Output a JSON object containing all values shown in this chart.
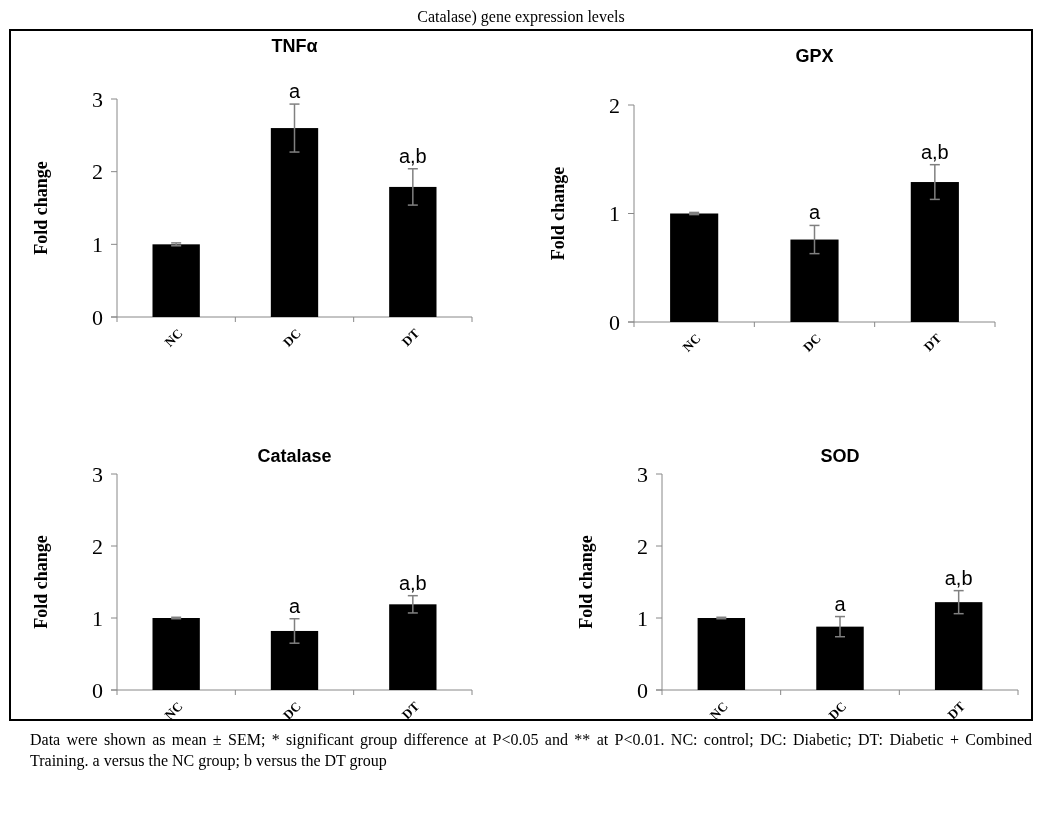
{
  "chart_data": [
    {
      "type": "bar",
      "title": "TNFα",
      "ylabel": "Fold change",
      "categories": [
        "NC",
        "DC",
        "DT"
      ],
      "values": [
        1.0,
        2.6,
        1.79
      ],
      "errors": [
        0.02,
        0.33,
        0.25
      ],
      "color": "#000000",
      "ylim": [
        0,
        3
      ],
      "yticks": [
        0,
        1,
        2,
        3
      ],
      "annotations": [
        "Catalase) gene expression levels",
        {
          "text": "a",
          "x": "DC",
          "y": 2.93
        },
        {
          "text": "a,b",
          "x": "DT",
          "y": 2.04
        },
        "Data were shown as mean ± SEM; * significant group difference at P<0.05  and ** at P<0.01. NC: control; DC: Diabetic; DT: Diabetic + Combined Training. a versus the NC group; b versus the DT group"
      ]
    },
    {
      "type": "bar",
      "title": "GPX",
      "ylabel": "Fold change",
      "categories": [
        "NC",
        "DC",
        "DT"
      ],
      "values": [
        1.0,
        0.76,
        1.29
      ],
      "errors": [
        0.01,
        0.13,
        0.16
      ],
      "color": "#000000",
      "ylim": [
        0,
        2
      ],
      "yticks": [
        0,
        1,
        2
      ],
      "annotations": [
        {
          "text": "a",
          "x": "DC",
          "y": 0.89
        },
        {
          "text": "a,b",
          "x": "DT",
          "y": 1.45
        }
      ]
    },
    {
      "type": "bar",
      "title": "Catalase",
      "ylabel": "Fold change",
      "categories": [
        "NC",
        "DC",
        "DT"
      ],
      "values": [
        1.0,
        0.82,
        1.19
      ],
      "errors": [
        0.01,
        0.17,
        0.12
      ],
      "color": "#000000",
      "ylim": [
        0,
        3
      ],
      "yticks": [
        0,
        1,
        2,
        3
      ],
      "annotations": [
        {
          "text": "a",
          "x": "DC",
          "y": 0.99
        },
        {
          "text": "a,b",
          "x": "DT",
          "y": 1.31
        }
      ]
    },
    {
      "type": "bar",
      "title": "SOD",
      "ylabel": "Fold change",
      "categories": [
        "NC",
        "DC",
        "DT"
      ],
      "values": [
        1.0,
        0.88,
        1.22
      ],
      "errors": [
        0.01,
        0.14,
        0.16
      ],
      "color": "#000000",
      "ylim": [
        0,
        3
      ],
      "yticks": [
        0,
        1,
        2,
        3
      ],
      "annotations": [
        {
          "text": "a",
          "x": "DC",
          "y": 1.02
        },
        {
          "text": "a,b",
          "x": "DT",
          "y": 1.38
        }
      ]
    }
  ]
}
